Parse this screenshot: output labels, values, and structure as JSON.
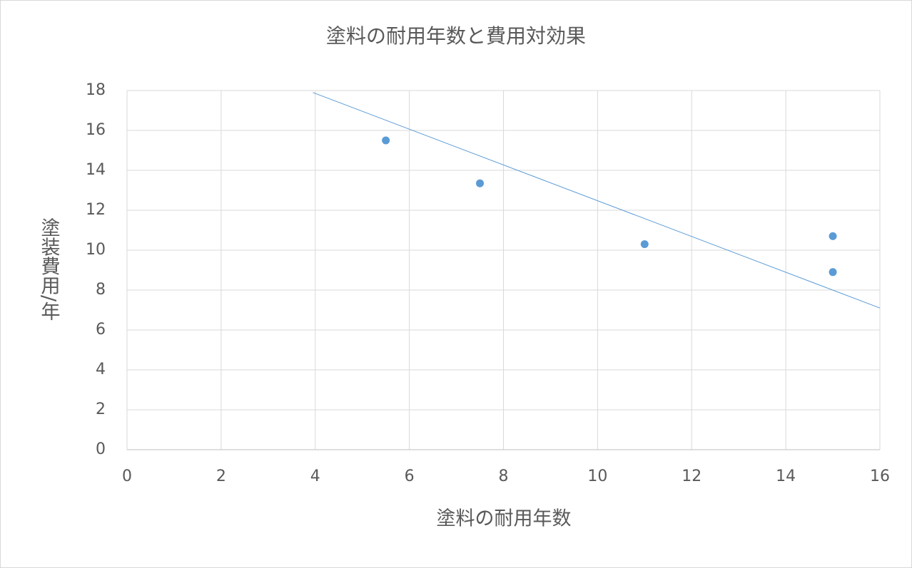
{
  "chart_data": {
    "type": "scatter",
    "title": "塗料の耐用年数と費用対効果",
    "x_label": "塗料の耐用年数",
    "y_label": "塗装費用/年",
    "series": [
      {
        "color": "#5b9bd5",
        "x": [
          5.5,
          7.5,
          11,
          15,
          15
        ],
        "values": [
          15.5,
          13.35,
          10.3,
          10.7,
          8.9
        ]
      }
    ],
    "trendline": {
      "color": "#5b9bd5",
      "x": [
        3.95,
        16
      ],
      "values": [
        17.9,
        7.1
      ]
    },
    "xlim": [
      0,
      16
    ],
    "xticks": [
      0,
      2,
      4,
      6,
      8,
      10,
      12,
      14,
      16
    ],
    "ylim": [
      0,
      18
    ],
    "yticks": [
      0,
      2,
      4,
      6,
      8,
      10,
      12,
      14,
      16,
      18
    ],
    "grid": true
  }
}
